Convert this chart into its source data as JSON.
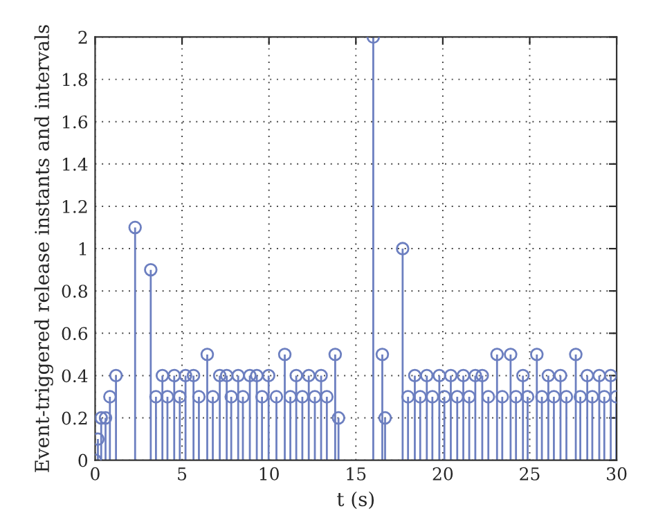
{
  "chart_data": {
    "type": "lollipop",
    "xlabel": "t (s)",
    "ylabel": "Event-triggered release instants and intervals",
    "x": [
      0,
      0.16,
      0.35,
      0.6,
      0.85,
      1.2,
      2.3,
      3.2,
      3.5,
      3.87,
      4.16,
      4.55,
      4.87,
      5.2,
      5.66,
      5.97,
      6.45,
      6.77,
      7.17,
      7.57,
      7.83,
      8.23,
      8.5,
      8.9,
      9.3,
      9.6,
      9.98,
      10.43,
      10.91,
      11.23,
      11.57,
      11.92,
      12.29,
      12.64,
      13.0,
      13.33,
      13.81,
      14.0,
      16.0,
      16.52,
      16.68,
      17.69,
      18.0,
      18.39,
      18.7,
      19.08,
      19.4,
      19.8,
      20.09,
      20.46,
      20.83,
      21.18,
      21.52,
      21.87,
      22.27,
      22.62,
      23.12,
      23.42,
      23.9,
      24.21,
      24.61,
      24.88,
      25.41,
      25.7,
      26.07,
      26.39,
      26.77,
      27.11,
      27.65,
      27.91,
      28.31,
      28.6,
      29.0,
      29.29,
      29.66,
      29.98
    ],
    "series": [
      {
        "color": "#6c7fc0",
        "values": [
          0,
          0.1,
          0.2,
          0.2,
          0.3,
          0.4,
          1.1,
          0.9,
          0.3,
          0.4,
          0.3,
          0.4,
          0.3,
          0.4,
          0.4,
          0.3,
          0.5,
          0.3,
          0.4,
          0.4,
          0.3,
          0.4,
          0.3,
          0.4,
          0.4,
          0.3,
          0.4,
          0.3,
          0.5,
          0.3,
          0.4,
          0.3,
          0.4,
          0.3,
          0.4,
          0.3,
          0.5,
          0.2,
          2.0,
          0.5,
          0.2,
          1.0,
          0.3,
          0.4,
          0.3,
          0.4,
          0.3,
          0.4,
          0.3,
          0.4,
          0.3,
          0.4,
          0.3,
          0.4,
          0.4,
          0.3,
          0.5,
          0.3,
          0.5,
          0.3,
          0.4,
          0.3,
          0.5,
          0.3,
          0.4,
          0.3,
          0.4,
          0.3,
          0.5,
          0.3,
          0.4,
          0.3,
          0.4,
          0.3,
          0.4,
          0.3
        ]
      }
    ],
    "xlim": [
      0,
      30
    ],
    "xticks": [
      0,
      5,
      10,
      15,
      20,
      25,
      30
    ],
    "ylim": [
      0,
      2
    ],
    "yticks": [
      0,
      0.2,
      0.4,
      0.6,
      0.8,
      1,
      1.2,
      1.4,
      1.6,
      1.8,
      2
    ],
    "grid": true,
    "marker": "circle"
  }
}
